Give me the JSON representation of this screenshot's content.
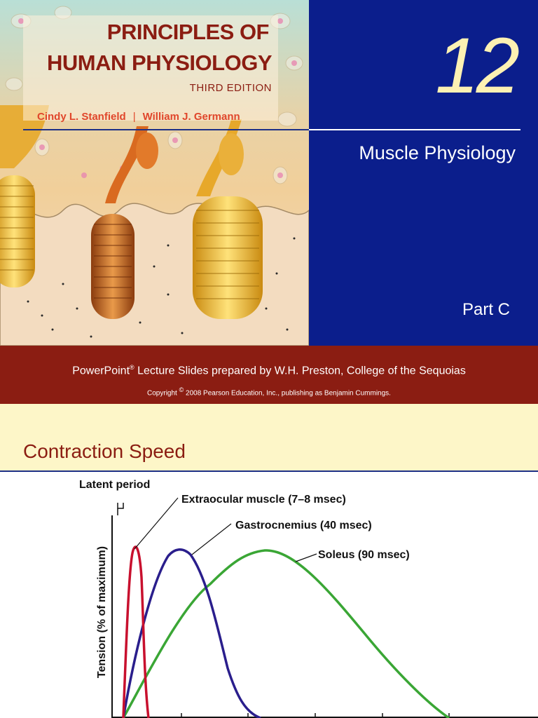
{
  "cover": {
    "book_title_line1": "PRINCIPLES OF",
    "book_title_line2": "HUMAN PHYSIOLOGY",
    "edition": "THIRD EDITION",
    "author1": "Cindy L. Stanfield",
    "author_separator": "|",
    "author2": "William J. Germann",
    "chapter_number": "12",
    "chapter_title": "Muscle Physiology",
    "part": "Part C"
  },
  "credit": {
    "line_prefix": "PowerPoint",
    "line_reg": "®",
    "line_suffix": " Lecture Slides prepared by W.H. Preston, College of the Sequoias",
    "copyright_prefix": "Copyright ",
    "copyright_symbol": "©",
    "copyright_suffix": " 2008 Pearson Education, Inc., publishing as Benjamin Cummings."
  },
  "slide2": {
    "title": "Contraction Speed"
  },
  "colors": {
    "brand_red": "#8b1d12",
    "brand_blue": "#0b1e8c",
    "slide_yellow": "#fdf6c8",
    "series_red": "#c8102e",
    "series_blue": "#2a1e8c",
    "series_green": "#3aa635"
  },
  "chart_data": {
    "type": "line",
    "title": "",
    "xlabel": "",
    "ylabel": "Tension (% of maximum)",
    "annotations": [
      "Latent period"
    ],
    "series": [
      {
        "name": "Extraocular muscle (7–8 msec)",
        "peak_x": 7.5
      },
      {
        "name": "Gastrocnemius (40 msec)",
        "peak_x": 40
      },
      {
        "name": "Soleus (90 msec)",
        "peak_x": 90
      }
    ]
  }
}
